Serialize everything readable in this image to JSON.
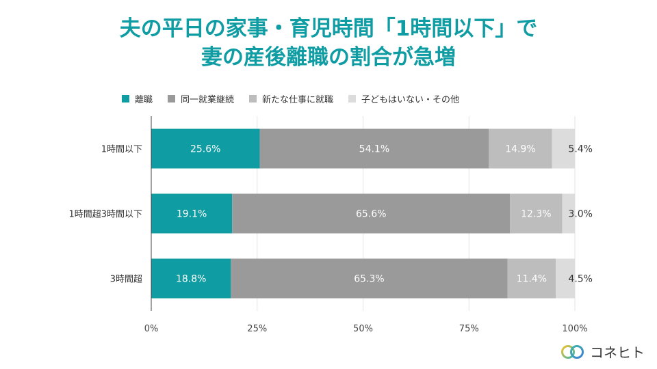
{
  "title": {
    "line1": "夫の平日の家事・育児時間「1時間以下」で",
    "line2": "妻の産後離職の割合が急増"
  },
  "colors": {
    "title": "#0f9ca3",
    "series": [
      "#0f9ca3",
      "#9a9a9a",
      "#bdbdbd",
      "#dcdcdc"
    ]
  },
  "brand": {
    "name": "コネヒト"
  },
  "chart_data": {
    "type": "bar",
    "orientation": "horizontal",
    "stacked": true,
    "categories": [
      "1時間以下",
      "1時間超3時間以下",
      "3時間超"
    ],
    "series": [
      {
        "name": "離職",
        "values": [
          25.6,
          19.1,
          18.8
        ],
        "labels": [
          "25.6%",
          "19.1%",
          "18.8%"
        ]
      },
      {
        "name": "同一就業継続",
        "values": [
          54.1,
          65.6,
          65.3
        ],
        "labels": [
          "54.1%",
          "65.6%",
          "65.3%"
        ]
      },
      {
        "name": "新たな仕事に就職",
        "values": [
          14.9,
          12.3,
          11.4
        ],
        "labels": [
          "14.9%",
          "12.3%",
          "11.4%"
        ]
      },
      {
        "name": "子どもはいない・その他",
        "values": [
          5.4,
          3.0,
          4.5
        ],
        "labels": [
          "5.4%",
          "3.0%",
          "4.5%"
        ]
      }
    ],
    "xlim": [
      0,
      100
    ],
    "xticks": [
      "0%",
      "25%",
      "50%",
      "75%",
      "100%"
    ],
    "grid": true,
    "legend": "top"
  }
}
